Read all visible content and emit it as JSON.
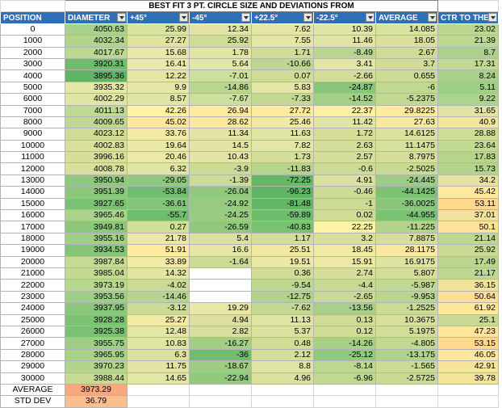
{
  "title": "BEST FIT 3 PT. CIRCLE SIZE AND DEVIATIONS FROM",
  "headers": [
    "POSITION",
    "DIAMETER",
    "+45°",
    "-45°",
    "+22.5°",
    "-22.5°",
    "AVERAGE",
    "CTR TO THEO"
  ],
  "rows": [
    {
      "pos": "0",
      "vals": [
        "4050.63",
        "25.99",
        "12.34",
        "7.62",
        "10.39",
        "14.085",
        "23.02"
      ],
      "colors": [
        "#a9d18e",
        "#d8e3a0",
        "#e2e3a4",
        "#e4e6a5",
        "#e1e4a6",
        "#d8e3a0",
        "#b9d78f"
      ]
    },
    {
      "pos": "1000",
      "vals": [
        "4032.34",
        "27.27",
        "25.92",
        "7.55",
        "11.46",
        "18.05",
        "21.39"
      ],
      "colors": [
        "#b2d48d",
        "#dfe39d",
        "#d0dc96",
        "#e4e6a5",
        "#e0e4a4",
        "#dadf9e",
        "#bdd891"
      ]
    },
    {
      "pos": "2000",
      "vals": [
        "4017.67",
        "15.68",
        "1.78",
        "1.71",
        "-8.49",
        "2.67",
        "8.7"
      ],
      "colors": [
        "#bdd891",
        "#e8e7a6",
        "#e2e6a2",
        "#d1dc97",
        "#b9d68e",
        "#d0dc96",
        "#acd28a"
      ]
    },
    {
      "pos": "3000",
      "vals": [
        "3920.31",
        "16.41",
        "5.64",
        "-10.66",
        "3.41",
        "3.7",
        "17.31"
      ],
      "colors": [
        "#6fbc6f",
        "#e8e8a8",
        "#e3e7a5",
        "#bdd790",
        "#e2e6a5",
        "#d2dc97",
        "#c1d993"
      ]
    },
    {
      "pos": "4000",
      "vals": [
        "3895.36",
        "12.22",
        "-7.01",
        "0.07",
        "-2.66",
        "0.655",
        "8.24"
      ],
      "colors": [
        "#5fb565",
        "#e4e6a4",
        "#cbe09c",
        "#cfdc96",
        "#d2dd98",
        "#cbdb95",
        "#a7d189"
      ]
    },
    {
      "pos": "5000",
      "vals": [
        "3935.32",
        "9.9",
        "-14.86",
        "5.83",
        "-24.87",
        "-6",
        "5.11"
      ],
      "colors": [
        "#e4e7a7",
        "#e4e7a7",
        "#b9d68f",
        "#e4e6a5",
        "#86c57a",
        "#c1d892",
        "#9fce86"
      ]
    },
    {
      "pos": "6000",
      "vals": [
        "4002.29",
        "8.57",
        "-7.67",
        "-7.33",
        "-14.52",
        "-5.2375",
        "9.22"
      ],
      "colors": [
        "#e0e5a3",
        "#e0e5a3",
        "#cbe09c",
        "#c4d994",
        "#a5cf87",
        "#c2d993",
        "#aed38b"
      ]
    },
    {
      "pos": "7000",
      "vals": [
        "4011.13",
        "42.26",
        "26.94",
        "27.72",
        "22.37",
        "29.8225",
        "31.65"
      ],
      "colors": [
        "#c0d992",
        "#fff2a2",
        "#ffeba0",
        "#ffeb9f",
        "#fff0a3",
        "#ffeb9f",
        "#e1e4a4"
      ]
    },
    {
      "pos": "8000",
      "vals": [
        "4009.65",
        "45.02",
        "28.62",
        "25.46",
        "11.42",
        "27.63",
        "40.9"
      ],
      "colors": [
        "#bed891",
        "#ffe89c",
        "#fbe99f",
        "#f1e8a2",
        "#e0e4a4",
        "#f8e9a0",
        "#f3e59a"
      ]
    },
    {
      "pos": "9000",
      "vals": [
        "4023.12",
        "33.76",
        "11.34",
        "11.63",
        "1.72",
        "14.6125",
        "28.88"
      ],
      "colors": [
        "#d0dc96",
        "#f2e9a4",
        "#e1e4a4",
        "#e0e4a4",
        "#d6de9a",
        "#dae09d",
        "#cfdc96"
      ]
    },
    {
      "pos": "10000",
      "vals": [
        "4002.83",
        "19.64",
        "14.5",
        "7.82",
        "2.63",
        "11.1475",
        "23.64"
      ],
      "colors": [
        "#d9e09c",
        "#eae8a6",
        "#e3e5a5",
        "#e3e6a5",
        "#d6de9b",
        "#d6df9b",
        "#c3da93"
      ]
    },
    {
      "pos": "11000",
      "vals": [
        "3996.16",
        "20.46",
        "10.43",
        "1.73",
        "2.57",
        "8.7975",
        "17.83"
      ],
      "colors": [
        "#d5df9a",
        "#ece8a6",
        "#e2e5a5",
        "#d6de9b",
        "#d6de9b",
        "#d5de9a",
        "#b5d58d"
      ]
    },
    {
      "pos": "12000",
      "vals": [
        "4008.78",
        "6.32",
        "-3.9",
        "-11.83",
        "-0.6",
        "-2.5025",
        "15.73"
      ],
      "colors": [
        "#d9e09c",
        "#e0e4a4",
        "#cbdb95",
        "#b6d48e",
        "#cddb96",
        "#c8da94",
        "#b4d48d"
      ]
    },
    {
      "pos": "13000",
      "vals": [
        "3950.94",
        "-29.05",
        "-1.39",
        "-72.25",
        "4.91",
        "-24.445",
        "34.2"
      ],
      "colors": [
        "#8fc77d",
        "#91c87e",
        "#ccdb95",
        "#64b867",
        "#dae09d",
        "#9ecc84",
        "#e6e3a0"
      ]
    },
    {
      "pos": "14000",
      "vals": [
        "3951.39",
        "-53.84",
        "-26.04",
        "-96.23",
        "-0.46",
        "-44.1425",
        "45.42"
      ],
      "colors": [
        "#8dc77c",
        "#71bd70",
        "#93c97f",
        "#5fb565",
        "#cddb96",
        "#7dc275",
        "#ffe99c"
      ]
    },
    {
      "pos": "15000",
      "vals": [
        "3927.65",
        "-36.61",
        "-24.92",
        "-81.48",
        "-1",
        "-36.0025",
        "53.11"
      ],
      "colors": [
        "#7bc173",
        "#84c479",
        "#98cb81",
        "#62b666",
        "#cbdb96",
        "#89c67b",
        "#ffd88d"
      ]
    },
    {
      "pos": "16000",
      "vals": [
        "3965.46",
        "-55.7",
        "-24.25",
        "-59.89",
        "0.02",
        "-44.955",
        "37.01"
      ],
      "colors": [
        "#aad28b",
        "#70bc70",
        "#99cb82",
        "#6fbc6f",
        "#cedc96",
        "#7cc274",
        "#efe39c"
      ]
    },
    {
      "pos": "17000",
      "vals": [
        "3949.81",
        "0.27",
        "-26.59",
        "-40.83",
        "22.25",
        "-11.225",
        "50.1"
      ],
      "colors": [
        "#8dc77c",
        "#d3de99",
        "#91c87e",
        "#7ac173",
        "#fff3a5",
        "#b4d48d",
        "#ffe29a"
      ]
    },
    {
      "pos": "18000",
      "vals": [
        "3955.16",
        "21.78",
        "5.4",
        "1.17",
        "3.2",
        "7.8875",
        "21.14"
      ],
      "colors": [
        "#a1cf87",
        "#ece8a7",
        "#dce19f",
        "#d3dd99",
        "#d8df9b",
        "#d5de9a",
        "#bdd891"
      ]
    },
    {
      "pos": "19000",
      "vals": [
        "3934.53",
        "51.91",
        "16.6",
        "25.51",
        "18.45",
        "28.1175",
        "25.92"
      ],
      "colors": [
        "#83c479",
        "#ffeb9e",
        "#e6e6a6",
        "#f1e8a2",
        "#f2e9a3",
        "#f9e9a0",
        "#c8da94"
      ]
    },
    {
      "pos": "20000",
      "vals": [
        "3987.84",
        "33.89",
        "-1.64",
        "19.51",
        "15.91",
        "16.9175",
        "17.49"
      ],
      "colors": [
        "#c5da94",
        "#f2e9a4",
        "#ccdb95",
        "#ebe7a5",
        "#eee8a5",
        "#dfe3a1",
        "#b8d68e"
      ]
    },
    {
      "pos": "21000",
      "vals": [
        "3985.04",
        "14.32",
        "",
        "0.36",
        "2.74",
        "5.807",
        "21.17"
      ],
      "colors": [
        "#c3da93",
        "#e3e5a5",
        "#ffffff",
        "#d0dc97",
        "#d6de9b",
        "#d4dd99",
        "#bdd891"
      ]
    },
    {
      "pos": "22000",
      "vals": [
        "3973.19",
        "-4.02",
        "",
        "-9.54",
        "-4.4",
        "-5.987",
        "36.15"
      ],
      "colors": [
        "#b7d68e",
        "#cbdb95",
        "#ffffff",
        "#bdd790",
        "#c7da94",
        "#c1d892",
        "#efe39c"
      ]
    },
    {
      "pos": "23000",
      "vals": [
        "3953.56",
        "-14.46",
        "",
        "-12.75",
        "-2.65",
        "-9.953",
        "50.64"
      ],
      "colors": [
        "#9fce86",
        "#b6d58e",
        "#ffffff",
        "#b3d38c",
        "#c8da95",
        "#b8d68e",
        "#ffdf95"
      ]
    },
    {
      "pos": "24000",
      "vals": [
        "3937.95",
        "-3.12",
        "19.29",
        "-7.62",
        "-13.56",
        "-1.2525",
        "61.92"
      ],
      "colors": [
        "#8ac67b",
        "#ccdb96",
        "#e9e7a6",
        "#c3d993",
        "#a9d08a",
        "#c9db95",
        "#ffe899"
      ]
    },
    {
      "pos": "25000",
      "vals": [
        "3928.28",
        "25.27",
        "4.94",
        "11.13",
        "0.13",
        "10.3675",
        "25.1"
      ],
      "colors": [
        "#7cc274",
        "#f2e9a3",
        "#dcdf9f",
        "#e0e4a4",
        "#cedc96",
        "#d6df9b",
        "#c6da94"
      ]
    },
    {
      "pos": "26000",
      "vals": [
        "3925.38",
        "12.48",
        "2.82",
        "5.37",
        "0.12",
        "5.1975",
        "47.23"
      ],
      "colors": [
        "#7bc173",
        "#e4e6a5",
        "#d7df9c",
        "#dce19f",
        "#cedc96",
        "#d3dd99",
        "#ffe49b"
      ]
    },
    {
      "pos": "27000",
      "vals": [
        "3955.75",
        "10.83",
        "-16.27",
        "0.48",
        "-14.26",
        "-4.805",
        "53.15"
      ],
      "colors": [
        "#9fce86",
        "#e1e5a4",
        "#a3ce86",
        "#d1dc97",
        "#a6cf87",
        "#c3d993",
        "#ffd88d"
      ]
    },
    {
      "pos": "28000",
      "vals": [
        "3965.95",
        "6.3",
        "-36",
        "2.12",
        "-25.12",
        "-13.175",
        "46.05"
      ],
      "colors": [
        "#a9d18a",
        "#dce19f",
        "#71bd70",
        "#d5de9a",
        "#90c87e",
        "#afd28c",
        "#ffe79c"
      ]
    },
    {
      "pos": "29000",
      "vals": [
        "3970.23",
        "11.75",
        "-18.67",
        "8.8",
        "-8.14",
        "-1.565",
        "42.91"
      ],
      "colors": [
        "#b2d48d",
        "#e1e4a4",
        "#9dcc84",
        "#e0e4a4",
        "#bcd790",
        "#c9db95",
        "#f7e49b"
      ]
    },
    {
      "pos": "30000",
      "vals": [
        "3988.44",
        "14.65",
        "-22.94",
        "4.96",
        "-6.96",
        "-2.5725",
        "39.78"
      ],
      "colors": [
        "#c6da94",
        "#e4e6a5",
        "#93c97f",
        "#dbe09e",
        "#c0d892",
        "#c8da94",
        "#f1e49b"
      ]
    }
  ],
  "footer": [
    {
      "label": "AVERAGE",
      "value": "3973.29",
      "color": "#f8a77e"
    },
    {
      "label": "STD DEV",
      "value": "36.79",
      "color": "#f9bf8f"
    }
  ]
}
